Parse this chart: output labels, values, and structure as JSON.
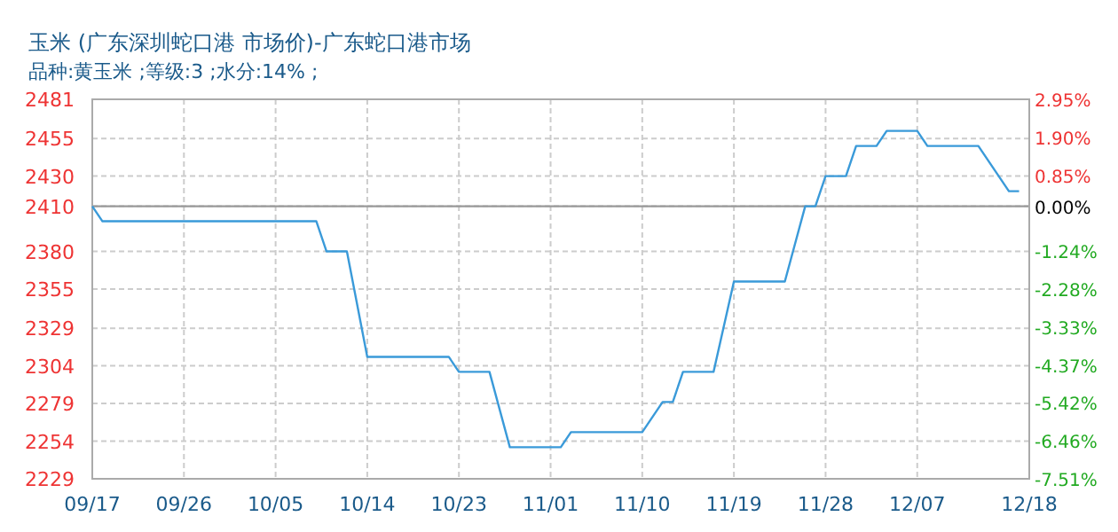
{
  "chart_data": {
    "type": "line",
    "title": "玉米 (广东深圳蛇口港 市场价)-广东蛇口港市场",
    "subtitle": "品种:黄玉米 ;等级:3 ;水分:14% ;",
    "x": [
      "--09-17",
      "--09-18",
      "--10-09",
      "--10-10",
      "--10-12",
      "--10-14",
      "--10-22",
      "--10-23",
      "--10-26",
      "--10-28",
      "--11-02",
      "--11-03",
      "--11-10",
      "--11-12",
      "--11-13",
      "--11-14",
      "--11-17",
      "--11-19",
      "--11-24",
      "--11-26",
      "--11-27",
      "--11-28",
      "--11-30",
      "--12-01",
      "--12-03",
      "--12-04",
      "--12-07",
      "--12-08",
      "--12-13",
      "--12-16",
      "--12-17"
    ],
    "series": [
      {
        "color": "#3a9ad9",
        "values": [
          2410,
          2400,
          2400,
          2380,
          2380,
          2310,
          2310,
          2300,
          2300,
          2250,
          2250,
          2260,
          2260,
          2280,
          2280,
          2300,
          2300,
          2360,
          2360,
          2410,
          2410,
          2430,
          2430,
          2450,
          2450,
          2460,
          2460,
          2450,
          2450,
          2420,
          2420
        ]
      }
    ],
    "xlim": [
      "--09-17",
      "--12-18"
    ],
    "xticks": [
      {
        "value": "--09-17",
        "label": "09/17"
      },
      {
        "value": "--09-26",
        "label": "09/26"
      },
      {
        "value": "--10-05",
        "label": "10/05"
      },
      {
        "value": "--10-14",
        "label": "10/14"
      },
      {
        "value": "--10-23",
        "label": "10/23"
      },
      {
        "value": "--11-01",
        "label": "11/01"
      },
      {
        "value": "--11-10",
        "label": "11/10"
      },
      {
        "value": "--11-19",
        "label": "11/19"
      },
      {
        "value": "--11-28",
        "label": "11/28"
      },
      {
        "value": "--12-07",
        "label": "12/07"
      },
      {
        "value": "--12-18",
        "label": "12/18"
      }
    ],
    "ylim": [
      2229,
      2481
    ],
    "yticks": [
      2481,
      2455,
      2430,
      2410,
      2380,
      2355,
      2329,
      2304,
      2279,
      2254,
      2229
    ],
    "y2lim": [
      -7.51,
      2.95
    ],
    "y2ticks": [
      {
        "value": 2.95,
        "label": "2.95%"
      },
      {
        "value": 1.9,
        "label": "1.90%"
      },
      {
        "value": 0.85,
        "label": "0.85%"
      },
      {
        "value": 0,
        "label": "0.00%"
      },
      {
        "value": -1.24,
        "label": "-1.24%"
      },
      {
        "value": -2.28,
        "label": "-2.28%"
      },
      {
        "value": -3.33,
        "label": "-3.33%"
      },
      {
        "value": -4.37,
        "label": "-4.37%"
      },
      {
        "value": -5.42,
        "label": "-5.42%"
      },
      {
        "value": -6.46,
        "label": "-6.46%"
      },
      {
        "value": -7.51,
        "label": "-7.51%"
      }
    ],
    "ref_lines": [
      {
        "axis": "y",
        "value": 2410,
        "color": "#999999"
      }
    ],
    "grid": true,
    "line_style": "solid",
    "marker": "none"
  }
}
